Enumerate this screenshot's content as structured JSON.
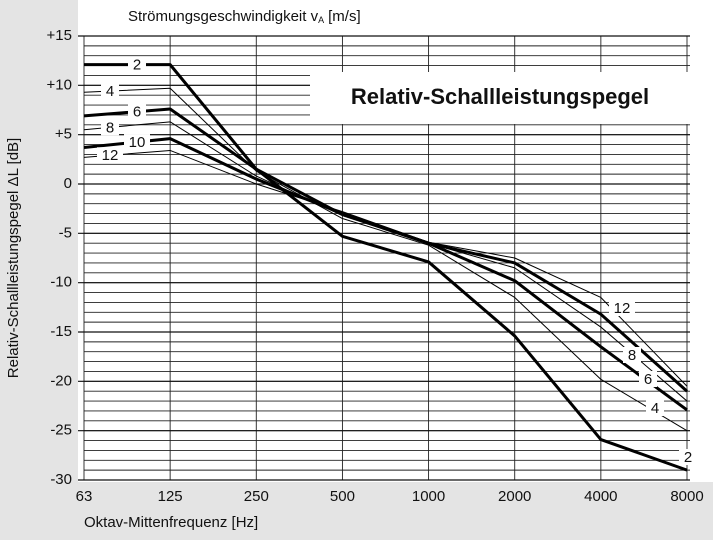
{
  "chart_data": {
    "type": "line",
    "title": "Relativ-Schallleistungspegel",
    "legend_title": {
      "text": "Strömungsgeschwindigkeit v",
      "sub": "A",
      "unit": "[m/s]"
    },
    "x_label": "Oktav-Mittenfrequenz [Hz]",
    "y_label": "Relativ-Schallleistungspegel ΔL [dB]",
    "categories": [
      "63",
      "125",
      "250",
      "500",
      "1000",
      "2000",
      "4000",
      "8000"
    ],
    "series": [
      {
        "name": "2",
        "color": "#000000",
        "line_width": 3,
        "values": [
          12.1,
          12.1,
          1.5,
          -5.3,
          -7.9,
          -15.4,
          -25.9,
          -29.0
        ]
      },
      {
        "name": "4",
        "color": "#000000",
        "line_width": 1,
        "values": [
          9.3,
          9.7,
          1.3,
          -3.5,
          -6.2,
          -11.5,
          -19.8,
          -25.0
        ]
      },
      {
        "name": "6",
        "color": "#000000",
        "line_width": 3,
        "values": [
          6.9,
          7.6,
          1.5,
          -3.1,
          -6.0,
          -9.8,
          -16.5,
          -22.9
        ]
      },
      {
        "name": "8",
        "color": "#000000",
        "line_width": 1,
        "values": [
          5.5,
          6.3,
          0.8,
          -3.2,
          -6.0,
          -8.5,
          -14.5,
          -22.0
        ]
      },
      {
        "name": "10",
        "color": "#000000",
        "line_width": 3,
        "values": [
          3.7,
          4.6,
          0.5,
          -3.0,
          -6.0,
          -8.0,
          -13.2,
          -21.0
        ]
      },
      {
        "name": "12",
        "color": "#000000",
        "line_width": 1,
        "values": [
          2.7,
          3.4,
          0.0,
          -2.8,
          -5.9,
          -7.5,
          -11.5,
          -20.5
        ]
      }
    ],
    "ylim": [
      -30,
      15
    ],
    "yticks": [
      {
        "value": 15,
        "label": "+15"
      },
      {
        "value": 10,
        "label": "+10"
      },
      {
        "value": 5,
        "label": "+5"
      },
      0,
      -5,
      -10,
      -15,
      -20,
      -25,
      -30
    ],
    "minor_yticks": [
      15,
      14,
      13,
      12,
      11,
      10,
      9,
      8,
      7,
      6,
      5,
      4,
      3,
      2,
      1,
      0,
      -1,
      -2,
      -3,
      -4,
      -5,
      -6,
      -7,
      -8,
      -9,
      -10,
      -11,
      -12,
      -13,
      -14,
      -15,
      -16,
      -17,
      -18,
      -19,
      -20,
      -21,
      -22,
      -23,
      -24,
      -25,
      -26,
      -27,
      -28,
      -29,
      -30
    ],
    "grid": true
  }
}
